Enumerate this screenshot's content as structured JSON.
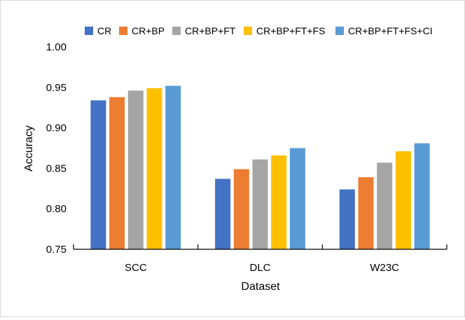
{
  "chart_data": {
    "type": "bar",
    "title": "",
    "xlabel": "Dataset",
    "ylabel": "Accuracy",
    "categories": [
      "SCC",
      "DLC",
      "W23C"
    ],
    "ylim": [
      0.75,
      1.0
    ],
    "yticks": [
      "0.75",
      "0.80",
      "0.85",
      "0.90",
      "0.95",
      "1.00"
    ],
    "grid": false,
    "legend_position": "top",
    "series": [
      {
        "name": "CR",
        "color": "#4472C4",
        "values": [
          0.934,
          0.837,
          0.824
        ]
      },
      {
        "name": "CR+BP",
        "color": "#ED7D31",
        "values": [
          0.938,
          0.849,
          0.839
        ]
      },
      {
        "name": "CR+BP+FT",
        "color": "#A5A5A5",
        "values": [
          0.946,
          0.861,
          0.857
        ]
      },
      {
        "name": "CR+BP+FT+FS",
        "color": "#FFC000",
        "values": [
          0.949,
          0.866,
          0.871
        ]
      },
      {
        "name": "CR+BP+FT+FS+CI",
        "color": "#5B9BD5",
        "values": [
          0.952,
          0.875,
          0.881
        ]
      }
    ]
  }
}
